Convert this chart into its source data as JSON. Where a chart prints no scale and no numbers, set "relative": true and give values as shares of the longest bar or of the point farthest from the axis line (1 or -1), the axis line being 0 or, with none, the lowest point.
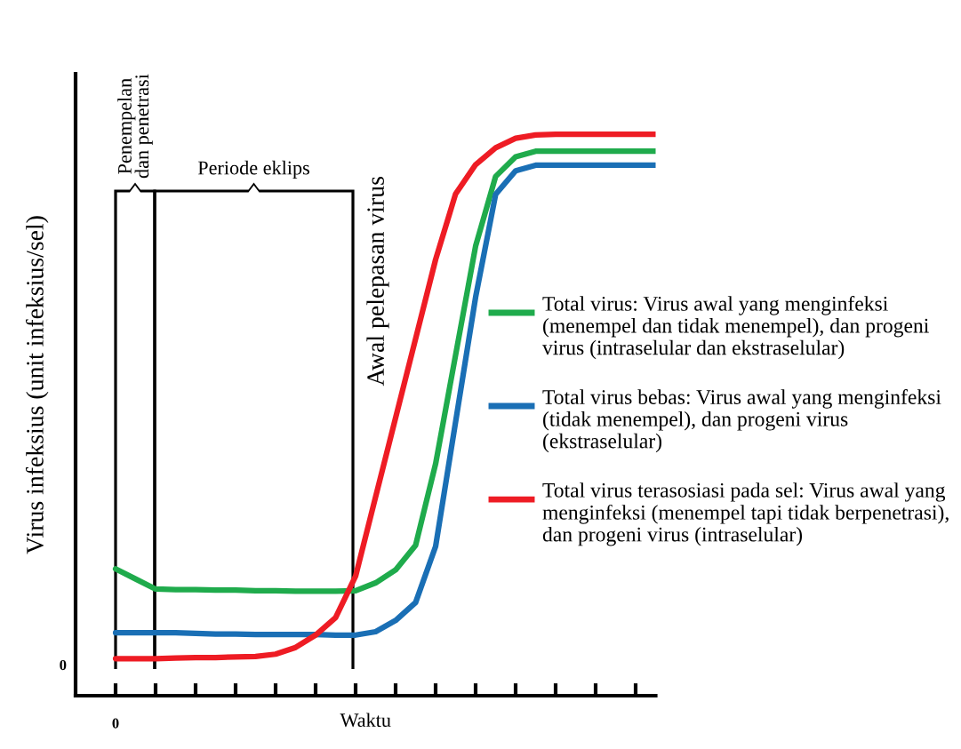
{
  "chart_data": {
    "type": "line",
    "relative": true,
    "xlabel": "Waktu",
    "ylabel": "Virus infeksius (unit infeksius/sel)",
    "categories": [
      null,
      null,
      null,
      null,
      null,
      null,
      null,
      null,
      null,
      null,
      null,
      null,
      null,
      null,
      null,
      null,
      null,
      null,
      null,
      null,
      null,
      null,
      null,
      null,
      null,
      null,
      null,
      null
    ],
    "annotations": [
      "0",
      "0",
      "Penempelan dan penetrasi",
      "Periode eklips",
      "Awal pelepasan virus"
    ],
    "legend": "right",
    "marker": "none",
    "line_style": "solid",
    "series": [
      {
        "name": "Total virus: Virus awal yang menginfeksi (menempel dan tidak menempel), dan progeni virus (intraselular dan ekstraselular)",
        "color": "#1fab4c",
        "values": [
          0.226,
          0.208,
          0.19,
          0.189,
          0.189,
          0.188,
          0.188,
          0.187,
          0.187,
          0.186,
          0.186,
          0.186,
          0.187,
          0.201,
          0.224,
          0.268,
          0.413,
          0.607,
          0.801,
          0.925,
          0.96,
          0.97,
          0.97,
          0.97,
          0.97,
          0.97,
          0.97,
          0.97
        ]
      },
      {
        "name": "Total virus bebas: Virus awal yang menginfeksi (tidak menempel), dan progeni virus (ekstraselular)",
        "color": "#1a6fb5",
        "values": [
          0.112,
          0.112,
          0.112,
          0.112,
          0.111,
          0.11,
          0.11,
          0.109,
          0.109,
          0.109,
          0.109,
          0.108,
          0.108,
          0.114,
          0.134,
          0.166,
          0.266,
          0.488,
          0.71,
          0.893,
          0.935,
          0.945,
          0.945,
          0.945,
          0.945,
          0.945,
          0.945,
          0.945
        ]
      },
      {
        "name": "Total virus terasosiasi pada sel: Virus awal yang menginfeksi (menempel tapi tidak berpenetrasi), dan progeni virus (intraselular)",
        "color": "#ee1c24",
        "values": [
          0.066,
          0.066,
          0.066,
          0.067,
          0.068,
          0.068,
          0.069,
          0.07,
          0.074,
          0.086,
          0.108,
          0.139,
          0.213,
          0.354,
          0.495,
          0.636,
          0.777,
          0.894,
          0.946,
          0.976,
          0.993,
          0.999,
          1,
          1,
          1,
          1,
          1,
          1
        ]
      }
    ]
  }
}
